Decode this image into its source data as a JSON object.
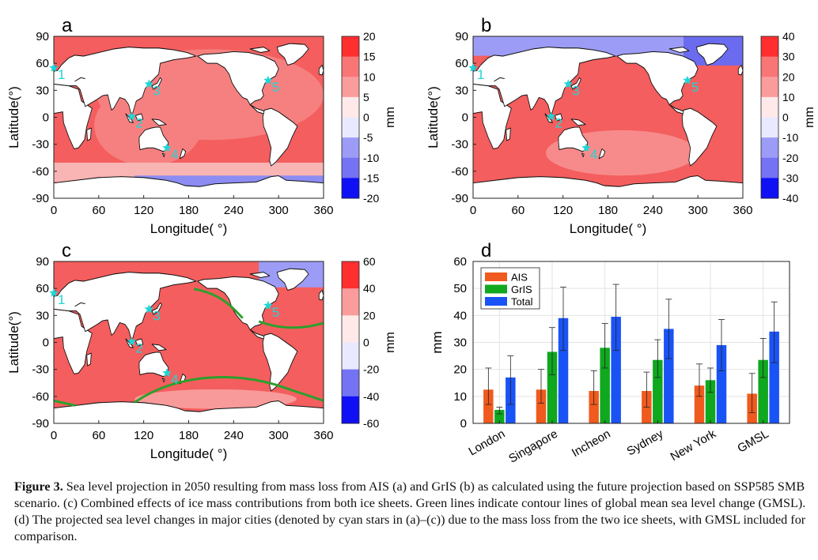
{
  "figure": {
    "caption_label": "Figure 3.",
    "caption_text": " Sea level projection in 2050 resulting from mass loss from AIS (a) and GrIS (b) as calculated using the future projection based on SSP585 SMB scenario. (c) Combined effects of ice mass contributions from both ice sheets. Green lines indicate contour lines of global mean sea level change (GMSL). (d) The projected sea level changes in major cities (denoted by cyan stars in (a)–(c)) due to the mass loss from the two ice sheets, with GMSL included for comparison."
  },
  "maps": {
    "xlabel": "Longitude( °)",
    "ylabel": "Latitude(°)",
    "xticks": [
      "0",
      "60",
      "120",
      "180",
      "240",
      "300",
      "360"
    ],
    "yticks": [
      "90",
      "60",
      "30",
      "0",
      "-30",
      "-60",
      "-90"
    ],
    "colorbar_unit": "mm",
    "cities": [
      {
        "id": "1",
        "lon": 0,
        "lat": 55
      },
      {
        "id": "2",
        "lon": 104,
        "lat": 1
      },
      {
        "id": "3",
        "lon": 127,
        "lat": 37
      },
      {
        "id": "4",
        "lon": 151,
        "lat": -34
      },
      {
        "id": "5",
        "lon": 286,
        "lat": 41
      }
    ],
    "star_color": "#1fd6d6",
    "contour_color": "#2ca02c",
    "panels": [
      {
        "label": "a",
        "cbar": [
          "20",
          "15",
          "10",
          "5",
          "0",
          "-5",
          "-10",
          "-15",
          "-20"
        ]
      },
      {
        "label": "b",
        "cbar": [
          "40",
          "30",
          "20",
          "10",
          "0",
          "-10",
          "-20",
          "-30",
          "-40"
        ]
      },
      {
        "label": "c",
        "cbar": [
          "60",
          "40",
          "20",
          "0",
          "-20",
          "-40",
          "-60"
        ]
      }
    ]
  },
  "chart_data": {
    "type": "bar",
    "panel_label": "d",
    "ylabel": "mm",
    "ylim": [
      0,
      60
    ],
    "yticks": [
      "0",
      "10",
      "20",
      "30",
      "40",
      "50",
      "60"
    ],
    "grid": true,
    "legend_position": "top-left",
    "categories": [
      "London",
      "Singapore",
      "Incheon",
      "Sydney",
      "New York",
      "GMSL"
    ],
    "series": [
      {
        "name": "AIS",
        "color": "#f05a1e",
        "values": [
          12.5,
          12.5,
          12,
          12,
          14,
          11
        ],
        "err_low": [
          7,
          7.5,
          7,
          6,
          10,
          4
        ],
        "err_high": [
          20.5,
          20,
          19.5,
          19,
          22,
          18.5
        ]
      },
      {
        "name": "GrIS",
        "color": "#0fa81e",
        "values": [
          5,
          26.5,
          28,
          23.5,
          16,
          23.5
        ],
        "err_low": [
          3.5,
          18,
          20.5,
          17,
          11.5,
          17
        ],
        "err_high": [
          6,
          35.5,
          37,
          31,
          20.5,
          31.5
        ]
      },
      {
        "name": "Total",
        "color": "#1a53f5",
        "values": [
          17,
          39,
          39.5,
          35,
          29,
          34
        ],
        "err_low": [
          7,
          27,
          27,
          24,
          19.5,
          22.5
        ],
        "err_high": [
          25,
          50.5,
          51.5,
          46,
          38.5,
          45
        ]
      }
    ]
  }
}
